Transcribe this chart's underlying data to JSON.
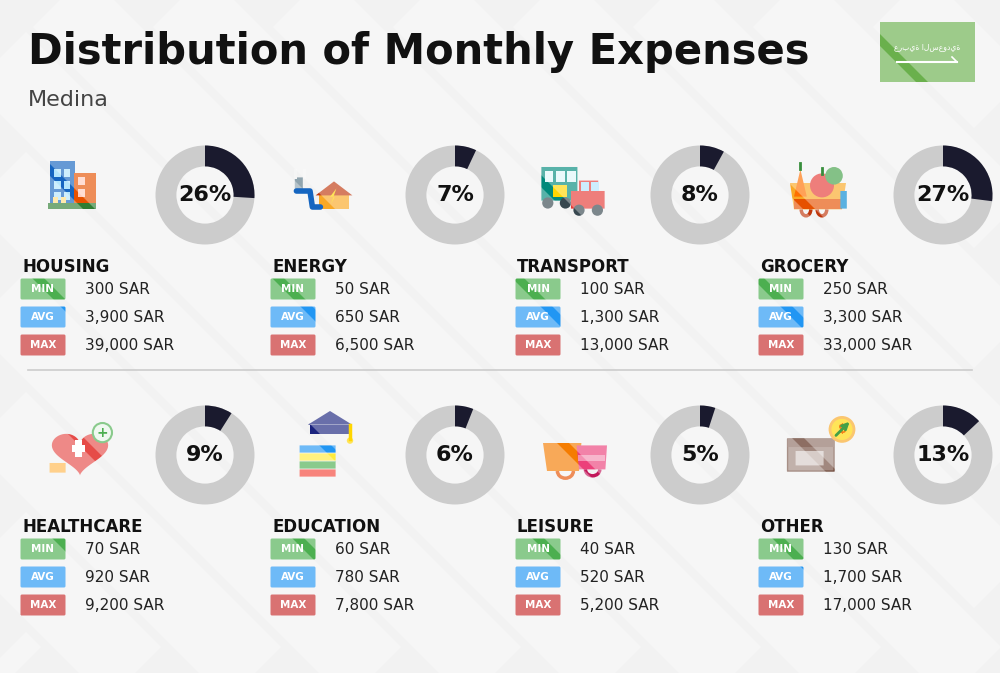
{
  "title": "Distribution of Monthly Expenses",
  "subtitle": "Medina",
  "background_color": "#f2f2f2",
  "categories": [
    {
      "name": "HOUSING",
      "pct": 26,
      "min": "300 SAR",
      "avg": "3,900 SAR",
      "max": "39,000 SAR",
      "row": 0,
      "col": 0
    },
    {
      "name": "ENERGY",
      "pct": 7,
      "min": "50 SAR",
      "avg": "650 SAR",
      "max": "6,500 SAR",
      "row": 0,
      "col": 1
    },
    {
      "name": "TRANSPORT",
      "pct": 8,
      "min": "100 SAR",
      "avg": "1,300 SAR",
      "max": "13,000 SAR",
      "row": 0,
      "col": 2
    },
    {
      "name": "GROCERY",
      "pct": 27,
      "min": "250 SAR",
      "avg": "3,300 SAR",
      "max": "33,000 SAR",
      "row": 0,
      "col": 3
    },
    {
      "name": "HEALTHCARE",
      "pct": 9,
      "min": "70 SAR",
      "avg": "920 SAR",
      "max": "9,200 SAR",
      "row": 1,
      "col": 0
    },
    {
      "name": "EDUCATION",
      "pct": 6,
      "min": "60 SAR",
      "avg": "780 SAR",
      "max": "7,800 SAR",
      "row": 1,
      "col": 1
    },
    {
      "name": "LEISURE",
      "pct": 5,
      "min": "40 SAR",
      "avg": "520 SAR",
      "max": "5,200 SAR",
      "row": 1,
      "col": 2
    },
    {
      "name": "OTHER",
      "pct": 13,
      "min": "130 SAR",
      "avg": "1,700 SAR",
      "max": "17,000 SAR",
      "row": 1,
      "col": 3
    }
  ],
  "min_color": "#4caf50",
  "avg_color": "#2196f3",
  "max_color": "#c62828",
  "donut_dark": "#1a1a2e",
  "donut_light": "#cccccc",
  "flag_color": "#6ab04c",
  "title_fontsize": 30,
  "subtitle_fontsize": 16,
  "cat_fontsize": 12,
  "val_fontsize": 11,
  "pct_fontsize": 16
}
